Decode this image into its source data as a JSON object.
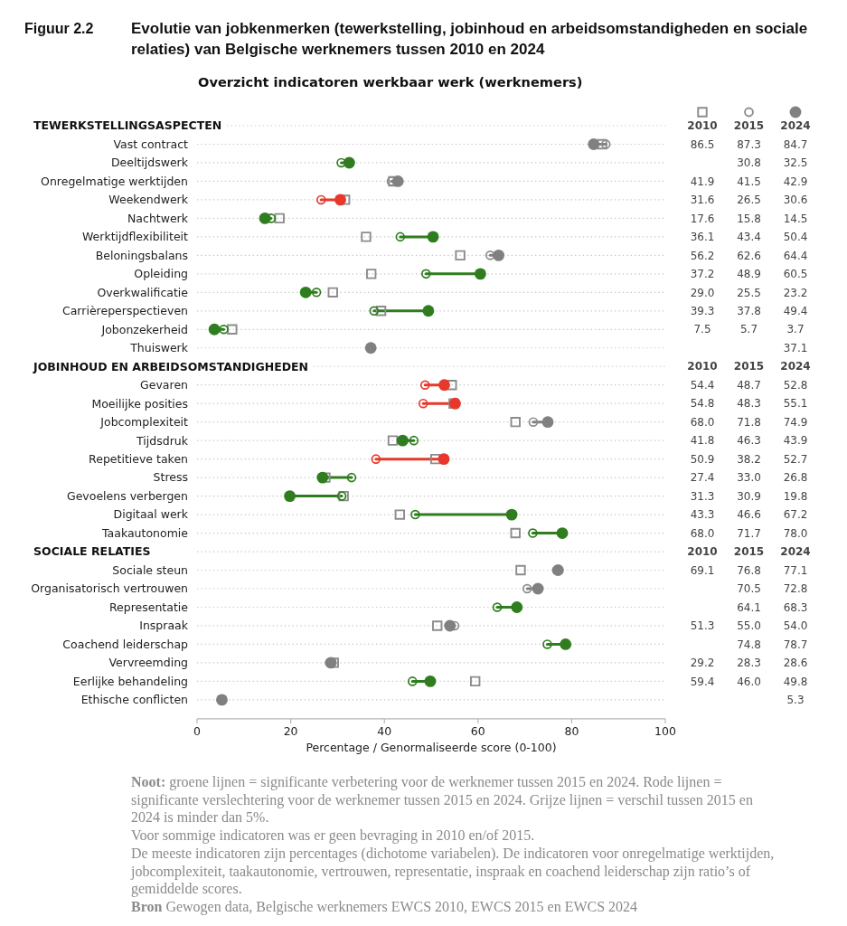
{
  "chart_data": {
    "type": "scatter",
    "orientation": "horizontal",
    "title": "Evolutie van jobkenmerken (tewerkstelling, jobinhoud en arbeidsomstandigheden en sociale relaties) van Belgische werknemers tussen 2010 en 2024",
    "subtitle": "Overzicht indicatoren werkbaar werk (werknemers)",
    "xlabel": "Percentage / Genormaliseerde score (0-100)",
    "categories": [
      null,
      "Vast contract",
      "Deeltijdswerk",
      "Onregelmatige werktijden",
      "Weekendwerk",
      "Nachtwerk",
      "Werktijdflexibiliteit",
      "Beloningsbalans",
      "Opleiding",
      "Overkwalificatie",
      "Carrièreperspectieven",
      "Jobonzekerheid",
      "Thuiswerk",
      null,
      "Gevaren",
      "Moeilijke posities",
      "Jobcomplexiteit",
      "Tijdsdruk",
      "Repetitieve taken",
      "Stress",
      "Gevoelens verbergen",
      "Digitaal werk",
      "Taakautonomie",
      null,
      "Sociale steun",
      "Organisatorisch vertrouwen",
      "Representatie",
      "Inspraak",
      "Coachend leiderschap",
      "Vervreemding",
      "Eerlijke behandeling",
      "Ethische conflicten"
    ],
    "series": [
      {
        "name": "2010",
        "color": "#8c8c8c",
        "marker": "square",
        "values": [
          null,
          86.5,
          null,
          41.9,
          31.6,
          17.6,
          36.1,
          56.2,
          37.2,
          29.0,
          39.3,
          7.5,
          null,
          null,
          54.4,
          54.8,
          68.0,
          41.8,
          50.9,
          27.4,
          31.3,
          43.3,
          68.0,
          null,
          69.1,
          null,
          null,
          51.3,
          null,
          29.2,
          59.4,
          null
        ],
        "value_labels": [
          null,
          "86.5",
          null,
          "41.9",
          "31.6",
          "17.6",
          "36.1",
          "56.2",
          "37.2",
          "29.0",
          "39.3",
          "7.5",
          null,
          null,
          "54.4",
          "54.8",
          "68.0",
          "41.8",
          "50.9",
          "27.4",
          "31.3",
          "43.3",
          "68.0",
          null,
          "69.1",
          null,
          null,
          "51.3",
          null,
          "29.2",
          "59.4",
          null
        ]
      },
      {
        "name": "2015",
        "color": "#8c8c8c",
        "marker": "circle",
        "values": [
          null,
          87.3,
          30.8,
          41.5,
          26.5,
          15.8,
          43.4,
          62.6,
          48.9,
          25.5,
          37.8,
          5.7,
          null,
          null,
          48.7,
          48.3,
          71.8,
          46.3,
          38.2,
          33.0,
          30.9,
          46.6,
          71.7,
          null,
          76.8,
          70.5,
          64.1,
          55.0,
          74.8,
          28.3,
          46.0,
          null
        ],
        "value_labels": [
          null,
          "87.3",
          "30.8",
          "41.5",
          "26.5",
          "15.8",
          "43.4",
          "62.6",
          "48.9",
          "25.5",
          "37.8",
          "5.7",
          null,
          null,
          "48.7",
          "48.3",
          "71.8",
          "46.3",
          "38.2",
          "33.0",
          "30.9",
          "46.6",
          "71.7",
          null,
          "76.8",
          "70.5",
          "64.1",
          "55.0",
          "74.8",
          "28.3",
          "46.0",
          null
        ],
        "colors": [
          null,
          "#8c8c8c",
          "#2f7d1f",
          "#8c8c8c",
          "#e8382b",
          "#2f7d1f",
          "#2f7d1f",
          "#8c8c8c",
          "#2f7d1f",
          "#2f7d1f",
          "#2f7d1f",
          "#2f7d1f",
          null,
          null,
          "#e8382b",
          "#e8382b",
          "#8c8c8c",
          "#2f7d1f",
          "#e8382b",
          "#2f7d1f",
          "#2f7d1f",
          "#2f7d1f",
          "#2f7d1f",
          null,
          "#8c8c8c",
          "#8c8c8c",
          "#2f7d1f",
          "#8c8c8c",
          "#2f7d1f",
          "#8c8c8c",
          "#2f7d1f",
          null
        ]
      },
      {
        "name": "2024",
        "color": "#808080",
        "marker": "circle",
        "values": [
          null,
          84.7,
          32.5,
          42.9,
          30.6,
          14.5,
          50.4,
          64.4,
          60.5,
          23.2,
          49.4,
          3.7,
          37.1,
          null,
          52.8,
          55.1,
          74.9,
          43.9,
          52.7,
          26.8,
          19.8,
          67.2,
          78.0,
          null,
          77.1,
          72.8,
          68.3,
          54.0,
          78.7,
          28.6,
          49.8,
          5.3
        ],
        "value_labels": [
          null,
          "84.7",
          "32.5",
          "42.9",
          "30.6",
          "14.5",
          "50.4",
          "64.4",
          "60.5",
          "23.2",
          "49.4",
          "3.7",
          "37.1",
          null,
          "52.8",
          "55.1",
          "74.9",
          "43.9",
          "52.7",
          "26.8",
          "19.8",
          "67.2",
          "78.0",
          null,
          "77.1",
          "72.8",
          "68.3",
          "54.0",
          "78.7",
          "28.6",
          "49.8",
          "5.3"
        ],
        "colors": [
          null,
          "#808080",
          "#2f7d1f",
          "#808080",
          "#e8382b",
          "#2f7d1f",
          "#2f7d1f",
          "#808080",
          "#2f7d1f",
          "#2f7d1f",
          "#2f7d1f",
          "#2f7d1f",
          "#808080",
          null,
          "#e8382b",
          "#e8382b",
          "#808080",
          "#2f7d1f",
          "#e8382b",
          "#2f7d1f",
          "#2f7d1f",
          "#2f7d1f",
          "#2f7d1f",
          null,
          "#808080",
          "#808080",
          "#2f7d1f",
          "#808080",
          "#2f7d1f",
          "#808080",
          "#2f7d1f",
          "#808080"
        ]
      }
    ],
    "xlim": [
      0,
      100
    ],
    "xticks": [
      0,
      20,
      40,
      60,
      80,
      100
    ],
    "grid": "y",
    "legend": "top right",
    "annotations": [
      "Figuur 2.2",
      "TEWERKSTELLINGSASPECTEN",
      "JOBINHOUD EN ARBEIDSOMSTANDIGHEDEN",
      "SOCIALE RELATIES",
      "Noot: groene lijnen = significante verbetering voor de werknemer tussen 2015 en 2024. Rode lijnen = significante verslechtering voor de werknemer tussen 2015 en 2024. Grijze lijnen = verschil tussen 2015 en 2024 is minder dan 5%.",
      "Voor sommige indicatoren was er geen bevraging in 2010 en/of 2015.",
      "De meeste indicatoren zijn percentages (dichotome variabelen). De indicatoren voor onregelmatige werktijden, jobcomplexiteit, taakautonomie, vertrouwen, representatie, inspraak en coachend leiderschap zijn ratio’s of gemiddelde scores.",
      "Bron Gewogen data, Belgische werknemers EWCS 2010, EWCS 2015 en EWCS 2024"
    ]
  }
}
